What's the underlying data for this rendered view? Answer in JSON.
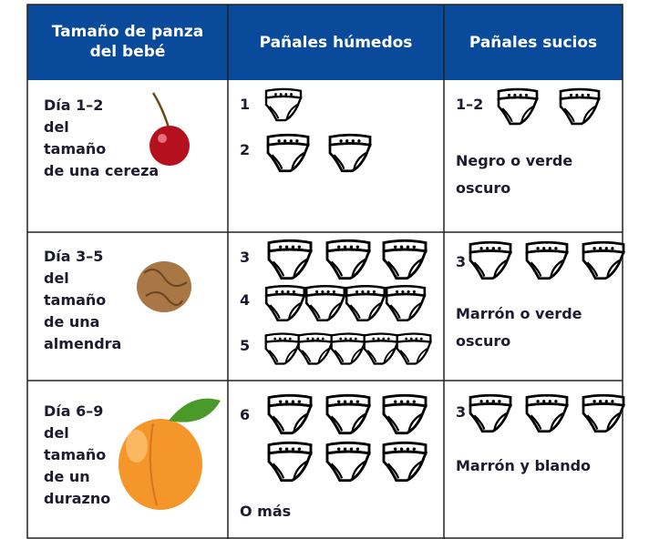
{
  "header": [
    "Tamaño de panza del bebé",
    "Pañales húmedos",
    "Pañales sucios"
  ],
  "rows": [
    {
      "size": [
        "Día 1–2",
        "del",
        "tamaño",
        "de una cereza"
      ],
      "wet": [
        "1",
        "2"
      ],
      "wet_note": null,
      "dirty": "1–2",
      "dirty_color": "Negro o verde oscuro"
    },
    {
      "size": [
        "Día 3–5",
        "del",
        "tamaño",
        "de una",
        "almendra"
      ],
      "wet": [
        "3",
        "4",
        "5"
      ],
      "wet_note": null,
      "dirty": "3",
      "dirty_color": "Marrón o verde oscuro"
    },
    {
      "size": [
        "Día 6–9",
        "del",
        "tamaño",
        "de un",
        "durazno"
      ],
      "wet": [
        "6"
      ],
      "wet_note": "O más",
      "dirty": "3",
      "dirty_color": "Marrón y blando"
    }
  ]
}
